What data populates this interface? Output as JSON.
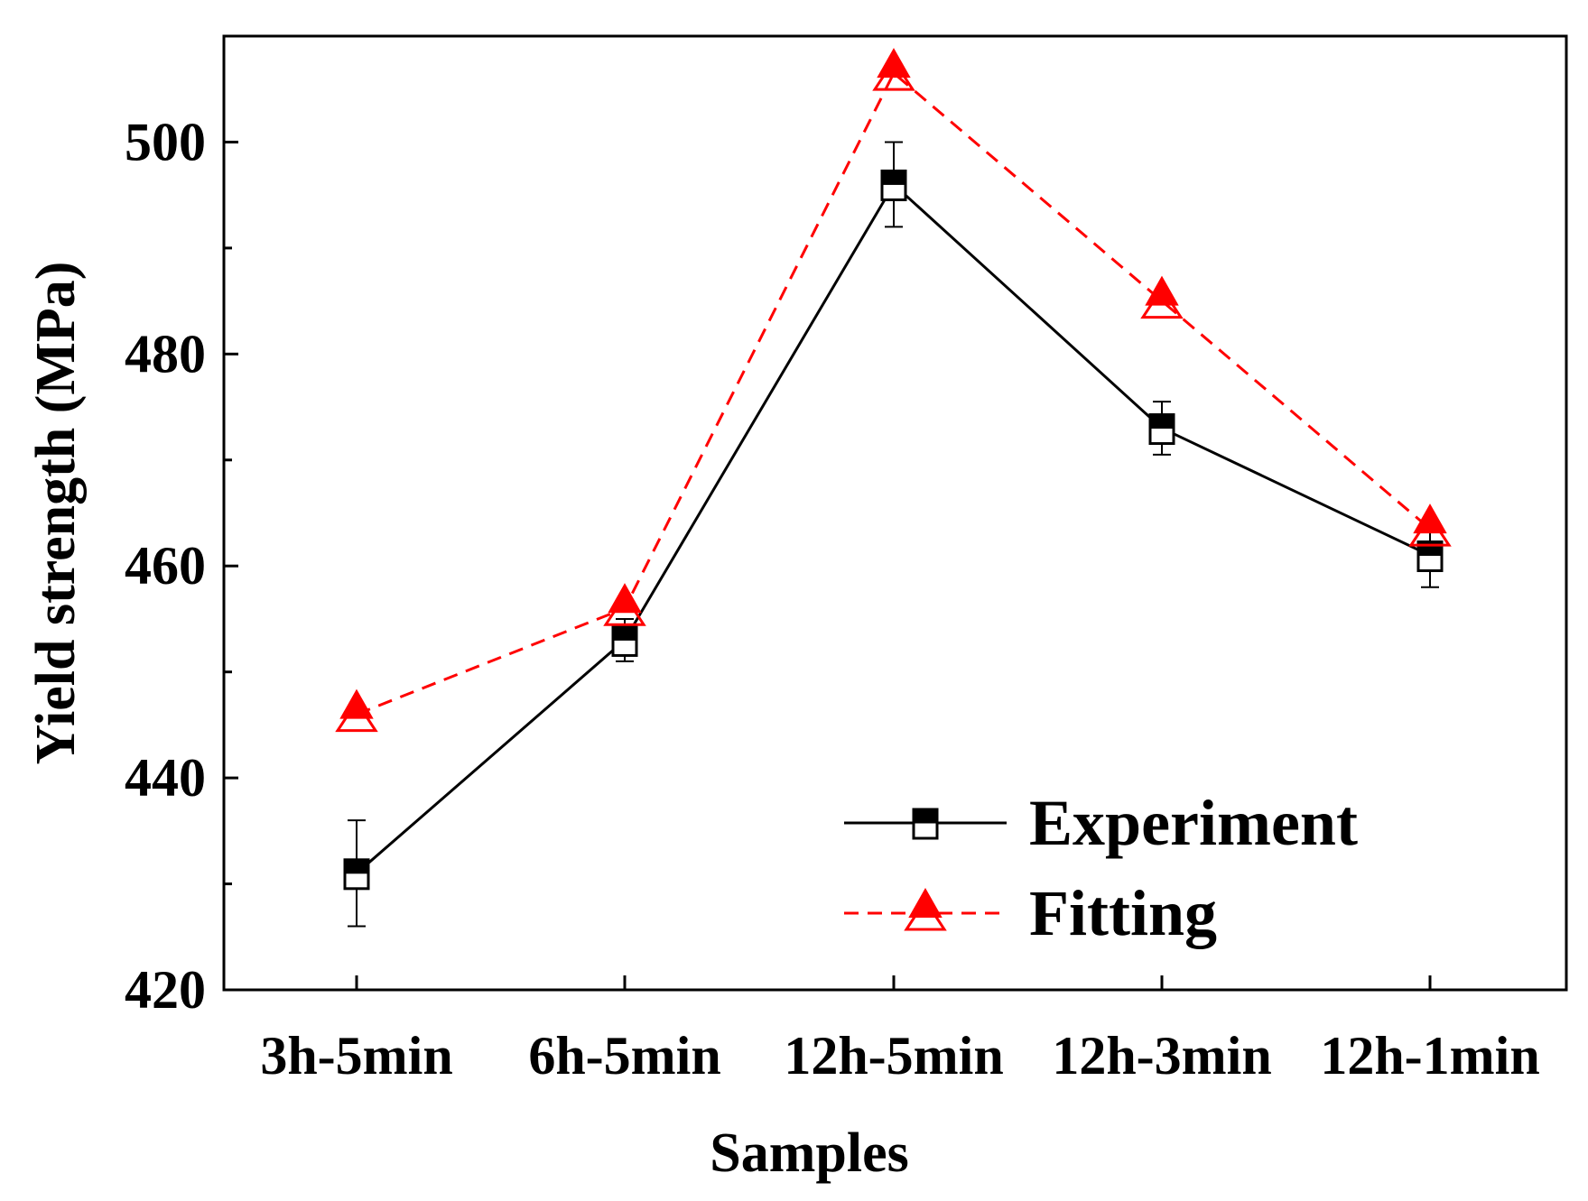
{
  "chart_data": {
    "type": "line",
    "title": "",
    "xlabel": "Samples",
    "ylabel": "Yield strength (MPa)",
    "categories": [
      "3h-5min",
      "6h-5min",
      "12h-5min",
      "12h-3min",
      "12h-1min"
    ],
    "ylim": [
      420,
      510
    ],
    "yticks": [
      420,
      440,
      460,
      480,
      500
    ],
    "ytick_labels": [
      "420",
      "440",
      "460",
      "480",
      "500"
    ],
    "series": [
      {
        "name": "Experiment",
        "color": "#000000",
        "line_style": "solid",
        "marker": "square",
        "values": [
          431,
          453,
          496,
          473,
          461
        ],
        "error_low": [
          426,
          451,
          492,
          470.5,
          458
        ],
        "error_high": [
          436,
          455,
          500,
          475.5,
          464
        ]
      },
      {
        "name": "Fitting",
        "color": "#ff0000",
        "line_style": "dashed",
        "marker": "triangle",
        "values": [
          446,
          456,
          506.5,
          485,
          463.5
        ]
      }
    ],
    "legend": {
      "position": "bottom-right",
      "items": [
        "Experiment",
        "Fitting"
      ]
    }
  }
}
